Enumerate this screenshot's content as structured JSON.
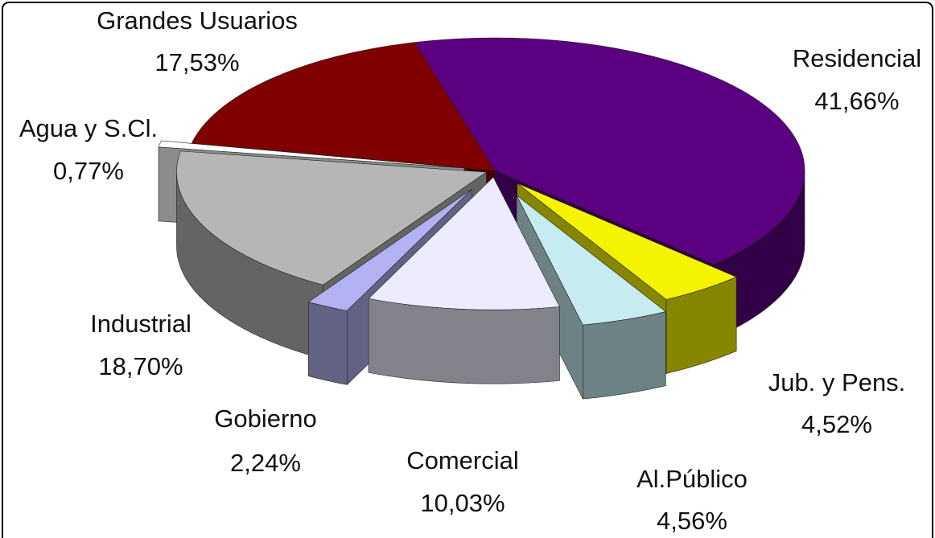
{
  "chart_data": {
    "type": "pie",
    "categories": [
      "Residencial",
      "Jub. y Pens.",
      "Al.Público",
      "Comercial",
      "Gobierno",
      "Industrial",
      "Agua y S.Cl.",
      "Grandes Usuarios"
    ],
    "values": [
      41.66,
      4.52,
      4.56,
      10.03,
      2.24,
      18.7,
      0.77,
      17.53
    ],
    "value_labels": [
      "41,66%",
      "4,52%",
      "4,56%",
      "10,03%",
      "2,24%",
      "18,70%",
      "0,77%",
      "17,53%"
    ],
    "colors": [
      "#5a0080",
      "#f4f400",
      "#c6ecf0",
      "#ececfc",
      "#b2b2f2",
      "#b6b6b6",
      "#ffffff",
      "#800000"
    ]
  }
}
